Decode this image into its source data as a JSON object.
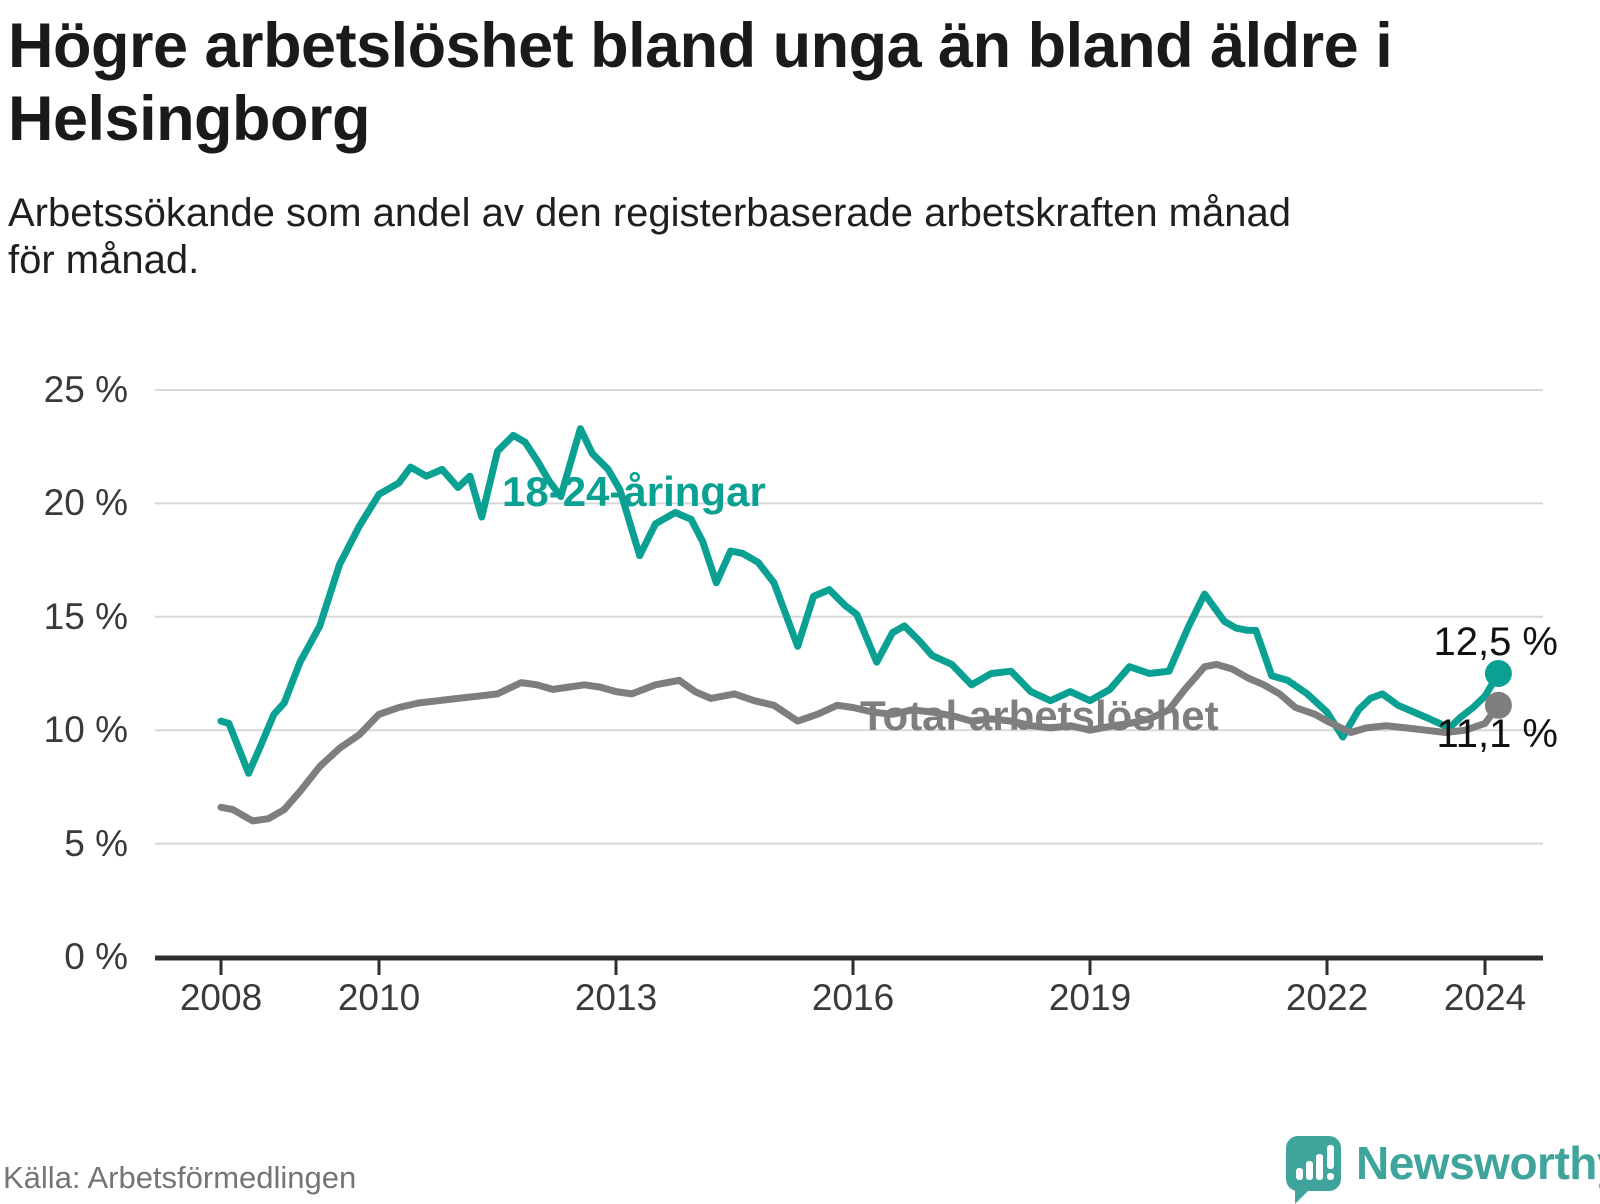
{
  "header": {
    "title_line1": "Högre arbetslöshet bland unga än bland äldre i",
    "title_line2": "Helsingborg",
    "subtitle_line1": "Arbetssökande som andel av den registerbaserade arbetskraften månad",
    "subtitle_line2": "för månad."
  },
  "footer": {
    "source": "Källa: Arbetsförmedlingen",
    "brand": "Newsworthy"
  },
  "colors": {
    "young": "#0AA193",
    "total": "#7E7E7E",
    "grid": "#D8D8D8",
    "axis": "#2F2F2F",
    "value_label": "#111111",
    "brand": "#3EA49C"
  },
  "chart_data": {
    "type": "line",
    "ylabel": "",
    "xlabel": "",
    "ylim": [
      0,
      25
    ],
    "xlim": [
      2007.9,
      2024.7
    ],
    "grid": "horizontal",
    "legend": "inline-labels",
    "y_ticks": [
      {
        "v": 0,
        "label": "0 %"
      },
      {
        "v": 5,
        "label": "5 %"
      },
      {
        "v": 10,
        "label": "10 %"
      },
      {
        "v": 15,
        "label": "15 %"
      },
      {
        "v": 20,
        "label": "20 %"
      },
      {
        "v": 25,
        "label": "25 %"
      }
    ],
    "x_ticks": [
      {
        "t": 2008,
        "label": "2008"
      },
      {
        "t": 2010,
        "label": "2010"
      },
      {
        "t": 2013,
        "label": "2013"
      },
      {
        "t": 2016,
        "label": "2016"
      },
      {
        "t": 2019,
        "label": "2019"
      },
      {
        "t": 2022,
        "label": "2022"
      },
      {
        "t": 2024,
        "label": "2024"
      }
    ],
    "series": [
      {
        "id": "young",
        "name": "18-24-åringar",
        "color": "#0AA193",
        "end_label": "12,5 %",
        "end_value": 12.5,
        "points": [
          [
            2008.0,
            10.4
          ],
          [
            2008.1,
            10.3
          ],
          [
            2008.35,
            8.1
          ],
          [
            2008.5,
            9.3
          ],
          [
            2008.67,
            10.7
          ],
          [
            2008.8,
            11.2
          ],
          [
            2009.0,
            13.0
          ],
          [
            2009.25,
            14.6
          ],
          [
            2009.5,
            17.3
          ],
          [
            2009.75,
            19.0
          ],
          [
            2010.0,
            20.4
          ],
          [
            2010.25,
            20.9
          ],
          [
            2010.4,
            21.6
          ],
          [
            2010.6,
            21.2
          ],
          [
            2010.8,
            21.5
          ],
          [
            2011.0,
            20.7
          ],
          [
            2011.15,
            21.2
          ],
          [
            2011.3,
            19.4
          ],
          [
            2011.5,
            22.3
          ],
          [
            2011.7,
            23.0
          ],
          [
            2011.85,
            22.7
          ],
          [
            2012.0,
            21.9
          ],
          [
            2012.15,
            21.0
          ],
          [
            2012.3,
            20.3
          ],
          [
            2012.55,
            23.3
          ],
          [
            2012.7,
            22.2
          ],
          [
            2012.9,
            21.5
          ],
          [
            2013.05,
            20.6
          ],
          [
            2013.3,
            17.7
          ],
          [
            2013.5,
            19.1
          ],
          [
            2013.75,
            19.6
          ],
          [
            2013.95,
            19.3
          ],
          [
            2014.1,
            18.3
          ],
          [
            2014.27,
            16.5
          ],
          [
            2014.45,
            17.9
          ],
          [
            2014.6,
            17.8
          ],
          [
            2014.8,
            17.4
          ],
          [
            2015.0,
            16.5
          ],
          [
            2015.3,
            13.7
          ],
          [
            2015.5,
            15.9
          ],
          [
            2015.7,
            16.2
          ],
          [
            2015.9,
            15.5
          ],
          [
            2016.05,
            15.1
          ],
          [
            2016.3,
            13.0
          ],
          [
            2016.5,
            14.3
          ],
          [
            2016.65,
            14.6
          ],
          [
            2016.85,
            13.9
          ],
          [
            2017.0,
            13.3
          ],
          [
            2017.25,
            12.9
          ],
          [
            2017.5,
            12.0
          ],
          [
            2017.75,
            12.5
          ],
          [
            2018.0,
            12.6
          ],
          [
            2018.25,
            11.7
          ],
          [
            2018.5,
            11.3
          ],
          [
            2018.75,
            11.7
          ],
          [
            2019.0,
            11.3
          ],
          [
            2019.25,
            11.8
          ],
          [
            2019.5,
            12.8
          ],
          [
            2019.75,
            12.5
          ],
          [
            2020.0,
            12.6
          ],
          [
            2020.25,
            14.6
          ],
          [
            2020.45,
            16.0
          ],
          [
            2020.7,
            14.8
          ],
          [
            2020.85,
            14.5
          ],
          [
            2021.0,
            14.4
          ],
          [
            2021.1,
            14.4
          ],
          [
            2021.3,
            12.4
          ],
          [
            2021.5,
            12.2
          ],
          [
            2021.75,
            11.6
          ],
          [
            2022.0,
            10.8
          ],
          [
            2022.2,
            9.7
          ],
          [
            2022.4,
            10.9
          ],
          [
            2022.55,
            11.4
          ],
          [
            2022.7,
            11.6
          ],
          [
            2022.9,
            11.1
          ],
          [
            2023.1,
            10.8
          ],
          [
            2023.3,
            10.5
          ],
          [
            2023.55,
            10.1
          ],
          [
            2023.7,
            10.6
          ],
          [
            2023.85,
            11.0
          ],
          [
            2024.0,
            11.5
          ],
          [
            2024.17,
            12.5
          ]
        ]
      },
      {
        "id": "total",
        "name": "Total arbetslöshet",
        "color": "#7E7E7E",
        "end_label": "11,1 %",
        "end_value": 11.1,
        "points": [
          [
            2008.0,
            6.6
          ],
          [
            2008.15,
            6.5
          ],
          [
            2008.4,
            6.0
          ],
          [
            2008.6,
            6.1
          ],
          [
            2008.8,
            6.5
          ],
          [
            2009.0,
            7.3
          ],
          [
            2009.25,
            8.4
          ],
          [
            2009.5,
            9.2
          ],
          [
            2009.75,
            9.8
          ],
          [
            2010.0,
            10.7
          ],
          [
            2010.25,
            11.0
          ],
          [
            2010.5,
            11.2
          ],
          [
            2010.75,
            11.3
          ],
          [
            2011.0,
            11.4
          ],
          [
            2011.25,
            11.5
          ],
          [
            2011.5,
            11.6
          ],
          [
            2011.8,
            12.1
          ],
          [
            2012.0,
            12.0
          ],
          [
            2012.2,
            11.8
          ],
          [
            2012.4,
            11.9
          ],
          [
            2012.6,
            12.0
          ],
          [
            2012.8,
            11.9
          ],
          [
            2013.0,
            11.7
          ],
          [
            2013.2,
            11.6
          ],
          [
            2013.5,
            12.0
          ],
          [
            2013.8,
            12.2
          ],
          [
            2014.0,
            11.7
          ],
          [
            2014.2,
            11.4
          ],
          [
            2014.5,
            11.6
          ],
          [
            2014.75,
            11.3
          ],
          [
            2015.0,
            11.1
          ],
          [
            2015.3,
            10.4
          ],
          [
            2015.55,
            10.7
          ],
          [
            2015.8,
            11.1
          ],
          [
            2016.0,
            11.0
          ],
          [
            2016.25,
            10.8
          ],
          [
            2016.5,
            10.7
          ],
          [
            2016.75,
            10.9
          ],
          [
            2017.0,
            10.8
          ],
          [
            2017.3,
            10.6
          ],
          [
            2017.5,
            10.4
          ],
          [
            2017.75,
            10.5
          ],
          [
            2018.0,
            10.4
          ],
          [
            2018.25,
            10.2
          ],
          [
            2018.5,
            10.1
          ],
          [
            2018.75,
            10.2
          ],
          [
            2019.0,
            10.0
          ],
          [
            2019.3,
            10.2
          ],
          [
            2019.5,
            10.3
          ],
          [
            2019.75,
            10.5
          ],
          [
            2020.0,
            10.9
          ],
          [
            2020.2,
            11.8
          ],
          [
            2020.45,
            12.8
          ],
          [
            2020.6,
            12.9
          ],
          [
            2020.8,
            12.7
          ],
          [
            2021.0,
            12.3
          ],
          [
            2021.2,
            12.0
          ],
          [
            2021.4,
            11.6
          ],
          [
            2021.6,
            11.0
          ],
          [
            2021.85,
            10.7
          ],
          [
            2022.0,
            10.4
          ],
          [
            2022.3,
            9.9
          ],
          [
            2022.5,
            10.1
          ],
          [
            2022.75,
            10.2
          ],
          [
            2023.0,
            10.1
          ],
          [
            2023.25,
            10.0
          ],
          [
            2023.5,
            9.9
          ],
          [
            2023.75,
            10.0
          ],
          [
            2024.0,
            10.3
          ],
          [
            2024.17,
            11.1
          ]
        ]
      }
    ]
  }
}
